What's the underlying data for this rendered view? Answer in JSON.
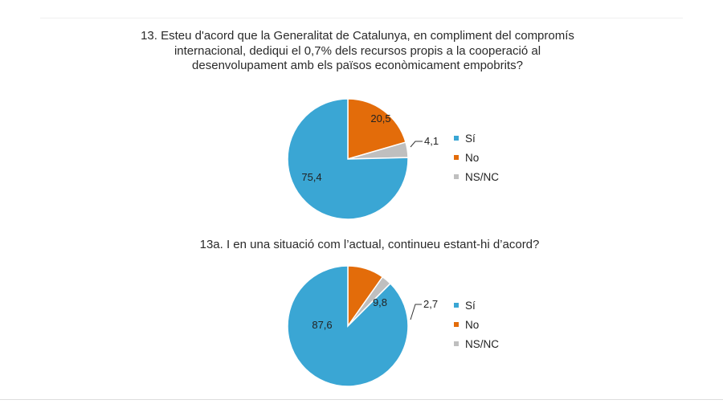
{
  "chart_data": [
    {
      "type": "pie",
      "title": "13. Esteu d'acord que la Generalitat de Catalunya, en compliment del compromís internacional, dediqui el 0,7% dels recursos propis a la cooperació al desenvolupament amb els països econòmicament empobrits?",
      "categories": [
        "Sí",
        "No",
        "NS/NC"
      ],
      "values": [
        75.4,
        20.5,
        4.1
      ],
      "labels": [
        "75,4",
        "20,5",
        "4,1"
      ],
      "colors": [
        "#3aa6d4",
        "#e36c0a",
        "#bfbfbf"
      ],
      "legend": "right"
    },
    {
      "type": "pie",
      "title": "13a. I en una situació com l’actual, continueu estant-hi d’acord?",
      "categories": [
        "Sí",
        "No",
        "NS/NC"
      ],
      "values": [
        87.6,
        9.8,
        2.7
      ],
      "labels": [
        "87,6",
        "9,8",
        "2,7"
      ],
      "colors": [
        "#3aa6d4",
        "#e36c0a",
        "#bfbfbf"
      ],
      "legend": "right"
    }
  ]
}
